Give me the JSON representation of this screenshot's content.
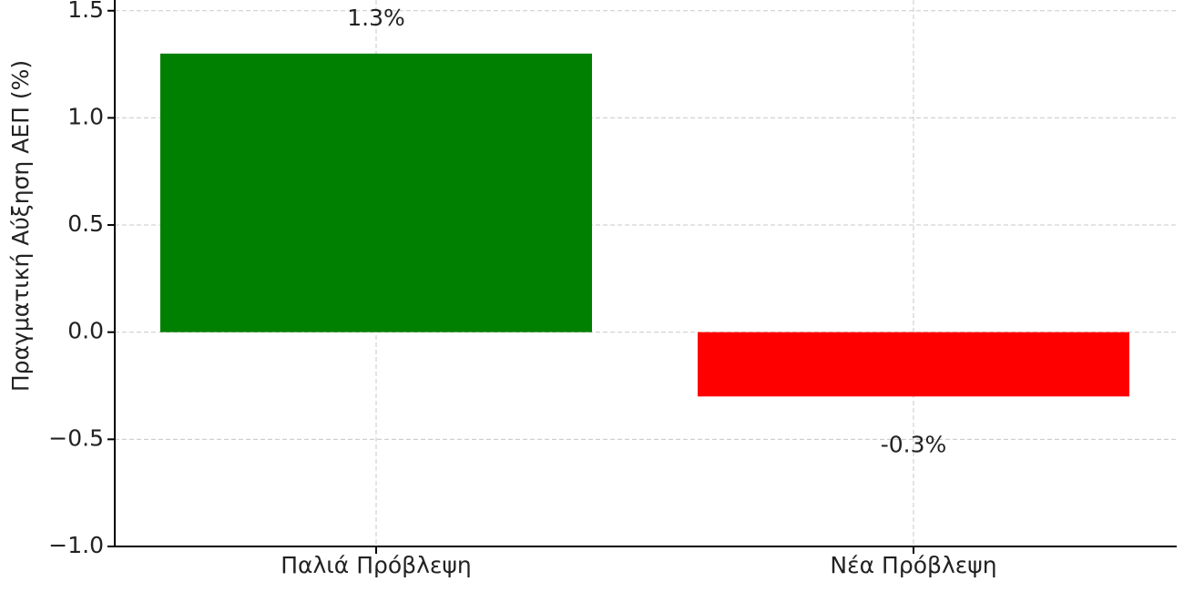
{
  "chart_data": {
    "type": "bar",
    "y_label": "Πραγματική Αύξηση ΑΕΠ (%)",
    "categories": [
      "Παλιά Πρόβλεψη",
      "Νέα Πρόβλεψη"
    ],
    "values": [
      1.3,
      -0.3
    ],
    "value_labels": [
      "1.3%",
      "-0.3%"
    ],
    "colors": [
      "#008000",
      "#ff0000"
    ],
    "ylim": [
      -1.0,
      1.55
    ],
    "yticks": [
      {
        "value": -1.0,
        "label": "−1.0"
      },
      {
        "value": -0.5,
        "label": "−0.5"
      },
      {
        "value": 0,
        "label": "0.0"
      },
      {
        "value": 0.5,
        "label": "0.5"
      },
      {
        "value": 1.0,
        "label": "1.0"
      },
      {
        "value": 1.5,
        "label": "1.5"
      }
    ],
    "grid": true
  }
}
